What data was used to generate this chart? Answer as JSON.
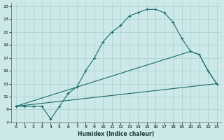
{
  "xlabel": "Humidex (Indice chaleur)",
  "bg_color": "#cce8e8",
  "grid_color": "#aacfcf",
  "line_color": "#1a6b6b",
  "xlim": [
    -0.5,
    23.5
  ],
  "ylim": [
    7,
    25.5
  ],
  "xticks": [
    0,
    1,
    2,
    3,
    4,
    5,
    6,
    7,
    8,
    9,
    10,
    11,
    12,
    13,
    14,
    15,
    16,
    17,
    18,
    19,
    20,
    21,
    22,
    23
  ],
  "yticks": [
    7,
    9,
    11,
    13,
    15,
    17,
    19,
    21,
    23,
    25
  ],
  "line1_x": [
    0,
    1,
    2,
    3,
    4,
    5,
    6,
    7,
    8,
    9,
    10,
    11,
    12,
    13,
    14,
    15,
    16,
    17,
    18,
    19,
    20,
    21,
    22,
    23
  ],
  "line1_y": [
    9.5,
    9.5,
    9.5,
    9.5,
    7.5,
    9.5,
    11.5,
    12.5,
    15,
    17,
    19.5,
    21,
    22,
    23.5,
    24,
    24.5,
    24.5,
    24,
    22.5,
    20,
    18,
    17.5,
    15,
    13
  ],
  "line2_x": [
    0,
    23
  ],
  "line2_y": [
    9.5,
    13
  ],
  "line3_x": [
    0,
    20,
    21,
    22,
    23
  ],
  "line3_y": [
    9.5,
    18,
    17.5,
    15,
    13
  ],
  "marker": "+"
}
